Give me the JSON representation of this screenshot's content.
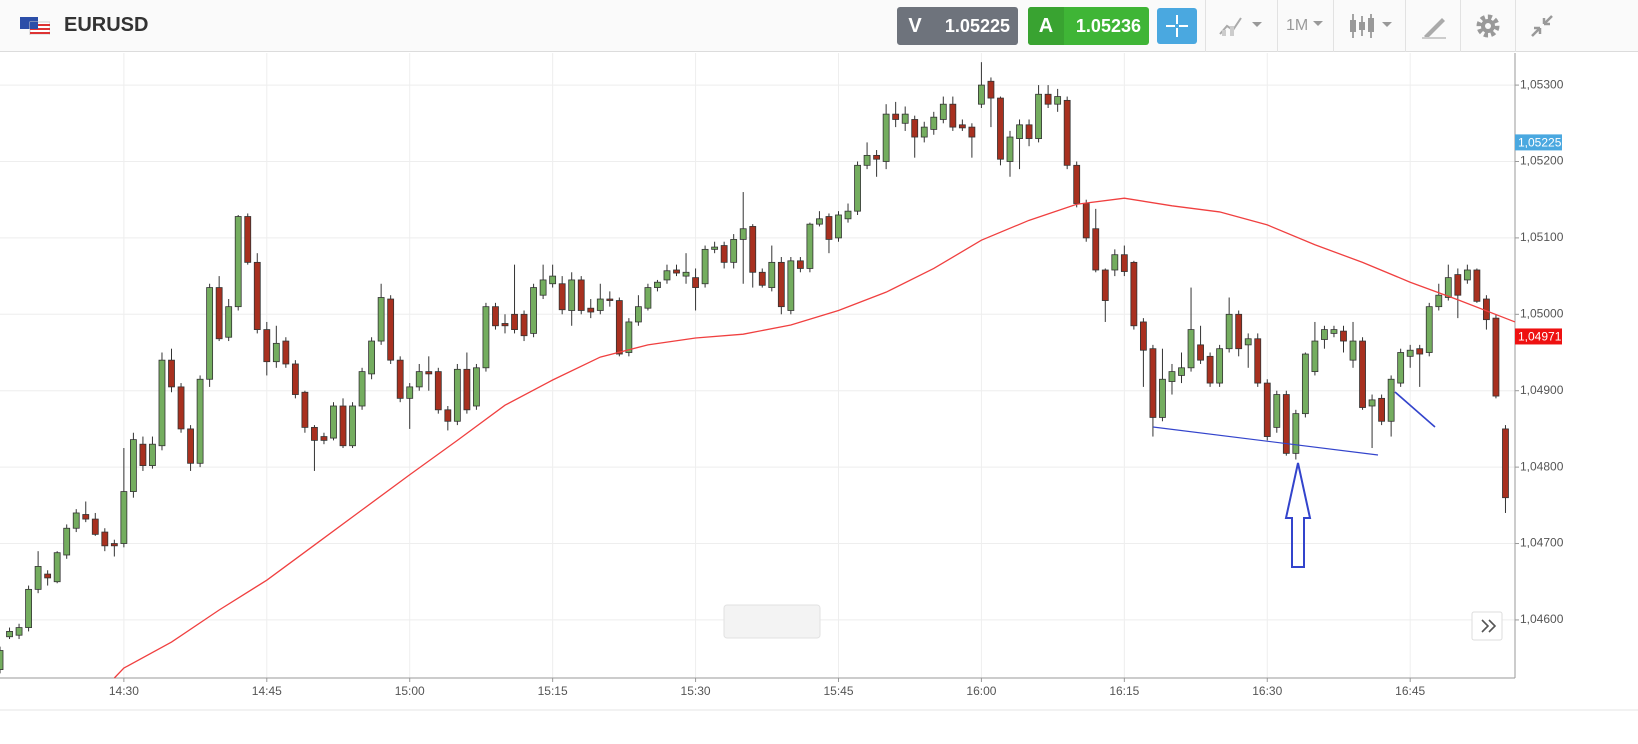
{
  "toolbar": {
    "symbol": "EURUSD",
    "sell": {
      "label": "V",
      "price": 1.05225
    },
    "buy": {
      "label": "A",
      "price": 1.05236
    },
    "timeframe": "1M"
  },
  "chart_data": {
    "type": "candlestick",
    "x": [
      "14:17",
      "14:18",
      "14:19",
      "14:20",
      "14:21",
      "14:22",
      "14:23",
      "14:24",
      "14:25",
      "14:26",
      "14:27",
      "14:28",
      "14:29",
      "14:30",
      "14:31",
      "14:32",
      "14:33",
      "14:34",
      "14:35",
      "14:36",
      "14:37",
      "14:38",
      "14:39",
      "14:40",
      "14:41",
      "14:42",
      "14:43",
      "14:44",
      "14:45",
      "14:46",
      "14:47",
      "14:48",
      "14:49",
      "14:50",
      "14:51",
      "14:52",
      "14:53",
      "14:54",
      "14:55",
      "14:56",
      "14:57",
      "14:58",
      "14:59",
      "15:00",
      "15:01",
      "15:02",
      "15:03",
      "15:04",
      "15:05",
      "15:06",
      "15:07",
      "15:08",
      "15:09",
      "15:10",
      "15:11",
      "15:12",
      "15:13",
      "15:14",
      "15:15",
      "15:16",
      "15:17",
      "15:18",
      "15:19",
      "15:20",
      "15:21",
      "15:22",
      "15:23",
      "15:24",
      "15:25",
      "15:26",
      "15:27",
      "15:28",
      "15:29",
      "15:30",
      "15:31",
      "15:32",
      "15:33",
      "15:34",
      "15:35",
      "15:36",
      "15:37",
      "15:38",
      "15:39",
      "15:40",
      "15:41",
      "15:42",
      "15:43",
      "15:44",
      "15:45",
      "15:46",
      "15:47",
      "15:48",
      "15:49",
      "15:50",
      "15:51",
      "15:52",
      "15:53",
      "15:54",
      "15:55",
      "15:56",
      "15:57",
      "15:58",
      "15:59",
      "16:00",
      "16:01",
      "16:02",
      "16:03",
      "16:04",
      "16:05",
      "16:06",
      "16:07",
      "16:08",
      "16:09",
      "16:10",
      "16:11",
      "16:12",
      "16:13",
      "16:14",
      "16:15",
      "16:16",
      "16:17",
      "16:18",
      "16:19",
      "16:20",
      "16:21",
      "16:22",
      "16:23",
      "16:24",
      "16:25",
      "16:26",
      "16:27",
      "16:28",
      "16:29",
      "16:30",
      "16:31",
      "16:32",
      "16:33",
      "16:34",
      "16:35",
      "16:36",
      "16:37",
      "16:38",
      "16:39",
      "16:40",
      "16:41",
      "16:42",
      "16:43",
      "16:44",
      "16:45",
      "16:46",
      "16:47",
      "16:48",
      "16:49",
      "16:50",
      "16:51",
      "16:52",
      "16:53",
      "16:54",
      "16:55"
    ],
    "open": [
      1.04535,
      1.04578,
      1.0458,
      1.0459,
      1.0464,
      1.0466,
      1.0465,
      1.04685,
      1.0472,
      1.04738,
      1.04732,
      1.04715,
      1.047,
      1.047,
      1.04768,
      1.0483,
      1.04802,
      1.04828,
      1.0494,
      1.04905,
      1.0485,
      1.04805,
      1.04915,
      1.05035,
      1.0497,
      1.0501,
      1.05128,
      1.05068,
      1.0498,
      1.04938,
      1.04965,
      1.04935,
      1.04898,
      1.04852,
      1.0484,
      1.04838,
      1.0488,
      1.04828,
      1.0488,
      1.04922,
      1.04965,
      1.0502,
      1.0494,
      1.0489,
      1.04905,
      1.04925,
      1.04925,
      1.04875,
      1.0486,
      1.04928,
      1.0488,
      1.0493,
      1.0501,
      1.04988,
      1.05,
      1.05,
      1.04975,
      1.05025,
      1.0504,
      1.0504,
      1.05005,
      1.05045,
      1.05008,
      1.05005,
      1.0502,
      1.05018,
      1.0495,
      1.0499,
      1.05008,
      1.05035,
      1.05045,
      1.05058,
      1.0505,
      1.05048,
      1.0504,
      1.05085,
      1.0509,
      1.05068,
      1.05098,
      1.05115,
      1.05055,
      1.05035,
      1.05068,
      1.05005,
      1.0507,
      1.0506,
      1.05118,
      1.05128,
      1.051,
      1.05125,
      1.05135,
      1.05195,
      1.05208,
      1.052,
      1.05262,
      1.0525,
      1.05255,
      1.05232,
      1.05242,
      1.05255,
      1.05275,
      1.05248,
      1.05245,
      1.05275,
      1.05305,
      1.05283,
      1.052,
      1.0523,
      1.05248,
      1.0523,
      1.05288,
      1.05275,
      1.0528,
      1.05195,
      1.05145,
      1.05112,
      1.05058,
      1.05058,
      1.05078,
      1.05068,
      1.0499,
      1.04955,
      1.04865,
      1.04912,
      1.0492,
      1.0493,
      1.0496,
      1.04945,
      1.0491,
      1.04955,
      1.05,
      1.0496,
      1.04968,
      1.0491,
      1.04852,
      1.04895,
      1.04818,
      1.0487,
      1.04925,
      1.04967,
      1.04975,
      1.04978,
      1.0494,
      1.04965,
      1.0488,
      1.0489,
      1.0486,
      1.0491,
      1.04945,
      1.04955,
      1.0495,
      1.0501,
      1.05022,
      1.05052,
      1.05045,
      1.05058,
      1.0502,
      1.04995,
      1.0485
    ],
    "high": [
      1.04565,
      1.0459,
      1.04595,
      1.04645,
      1.0469,
      1.04665,
      1.0469,
      1.04725,
      1.04745,
      1.04755,
      1.0474,
      1.0472,
      1.04705,
      1.04825,
      1.04845,
      1.0484,
      1.0484,
      1.0495,
      1.04955,
      1.0491,
      1.04855,
      1.0492,
      1.0504,
      1.0505,
      1.0502,
      1.0513,
      1.05132,
      1.0508,
      1.0499,
      1.04985,
      1.0497,
      1.0494,
      1.049,
      1.04855,
      1.04845,
      1.04885,
      1.0489,
      1.04885,
      1.0493,
      1.0497,
      1.0504,
      1.05025,
      1.04945,
      1.0491,
      1.04935,
      1.04945,
      1.0493,
      1.0488,
      1.04935,
      1.0495,
      1.04935,
      1.05015,
      1.05015,
      1.05,
      1.05065,
      1.05005,
      1.0504,
      1.05065,
      1.05065,
      1.0505,
      1.05055,
      1.0505,
      1.0502,
      1.0504,
      1.0503,
      1.05022,
      1.04995,
      1.05025,
      1.0504,
      1.05045,
      1.05065,
      1.05065,
      1.0508,
      1.0506,
      1.0509,
      1.05095,
      1.05095,
      1.05105,
      1.0516,
      1.05118,
      1.0506,
      1.0509,
      1.05075,
      1.05075,
      1.05075,
      1.0512,
      1.05135,
      1.05132,
      1.05135,
      1.05145,
      1.052,
      1.05225,
      1.05215,
      1.05275,
      1.05278,
      1.05272,
      1.0526,
      1.05252,
      1.05265,
      1.05285,
      1.05285,
      1.05255,
      1.0525,
      1.0533,
      1.0531,
      1.05285,
      1.0524,
      1.05255,
      1.05255,
      1.053,
      1.053,
      1.05295,
      1.05285,
      1.052,
      1.0515,
      1.05138,
      1.0506,
      1.05085,
      1.0509,
      1.0507,
      1.04995,
      1.0496,
      1.04955,
      1.04935,
      1.0495,
      1.05035,
      1.04985,
      1.0495,
      1.0496,
      1.05022,
      1.05005,
      1.04975,
      1.04975,
      1.04915,
      1.049,
      1.049,
      1.04875,
      1.0495,
      1.0499,
      1.04985,
      1.04985,
      1.04985,
      1.0499,
      1.0497,
      1.04895,
      1.04895,
      1.0492,
      1.04955,
      1.0496,
      1.0496,
      1.05015,
      1.0504,
      1.05065,
      1.0506,
      1.05065,
      1.0506,
      1.05025,
      1.05,
      1.04855
    ],
    "low": [
      1.0453,
      1.04575,
      1.04575,
      1.04585,
      1.04635,
      1.04645,
      1.04648,
      1.0468,
      1.04715,
      1.04728,
      1.0471,
      1.0469,
      1.04683,
      1.04695,
      1.0476,
      1.04795,
      1.04798,
      1.04822,
      1.04898,
      1.04845,
      1.04795,
      1.048,
      1.04905,
      1.04965,
      1.04965,
      1.05005,
      1.05065,
      1.04975,
      1.0492,
      1.0493,
      1.0493,
      1.0489,
      1.04845,
      1.04795,
      1.0483,
      1.04835,
      1.04825,
      1.04825,
      1.04875,
      1.04915,
      1.0496,
      1.04935,
      1.04885,
      1.0485,
      1.049,
      1.049,
      1.0487,
      1.04848,
      1.04855,
      1.0487,
      1.04875,
      1.04925,
      1.0498,
      1.04975,
      1.04975,
      1.04965,
      1.0497,
      1.0502,
      1.05035,
      1.05,
      1.04985,
      1.05,
      1.04995,
      1.05,
      1.0501,
      1.04945,
      1.04945,
      1.04985,
      1.05005,
      1.0503,
      1.0504,
      1.0505,
      1.0504,
      1.05005,
      1.05035,
      1.0508,
      1.0506,
      1.0506,
      1.0504,
      1.05035,
      1.05035,
      1.0503,
      1.05,
      1.05,
      1.05055,
      1.05055,
      1.05115,
      1.0508,
      1.05095,
      1.0512,
      1.0513,
      1.0519,
      1.0518,
      1.0519,
      1.05245,
      1.0524,
      1.05205,
      1.05225,
      1.05235,
      1.0525,
      1.0524,
      1.0524,
      1.05205,
      1.0527,
      1.05245,
      1.05195,
      1.0518,
      1.0519,
      1.0522,
      1.05225,
      1.0527,
      1.05265,
      1.0519,
      1.0514,
      1.05095,
      1.05055,
      1.0499,
      1.0505,
      1.0505,
      1.0498,
      1.04905,
      1.0484,
      1.0486,
      1.04895,
      1.0491,
      1.04925,
      1.04935,
      1.04905,
      1.04905,
      1.0495,
      1.04945,
      1.0493,
      1.04905,
      1.04835,
      1.04845,
      1.04815,
      1.0481,
      1.04865,
      1.0492,
      1.04955,
      1.0497,
      1.0495,
      1.0493,
      1.04875,
      1.04825,
      1.04855,
      1.0484,
      1.04905,
      1.0493,
      1.04905,
      1.04945,
      1.05005,
      1.05018,
      1.04995,
      1.0504,
      1.05015,
      1.0498,
      1.0489,
      1.0474
    ],
    "close": [
      1.0456,
      1.04585,
      1.0459,
      1.0464,
      1.0467,
      1.04655,
      1.04688,
      1.0472,
      1.0474,
      1.04732,
      1.04712,
      1.04697,
      1.04697,
      1.04768,
      1.04836,
      1.04802,
      1.0483,
      1.0494,
      1.04905,
      1.0485,
      1.04805,
      1.04915,
      1.05035,
      1.04968,
      1.0501,
      1.05128,
      1.05068,
      1.0498,
      1.04938,
      1.04962,
      1.04935,
      1.04895,
      1.04852,
      1.04835,
      1.04835,
      1.0488,
      1.04828,
      1.0488,
      1.04925,
      1.04965,
      1.05022,
      1.0494,
      1.0489,
      1.04905,
      1.04925,
      1.04922,
      1.04875,
      1.0486,
      1.04928,
      1.04875,
      1.0493,
      1.0501,
      1.04985,
      1.04985,
      1.0498,
      1.04972,
      1.05035,
      1.05045,
      1.0505,
      1.05006,
      1.05045,
      1.05005,
      1.05003,
      1.0502,
      1.05018,
      1.04948,
      1.0499,
      1.0501,
      1.05035,
      1.05042,
      1.05057,
      1.05054,
      1.05055,
      1.05035,
      1.05085,
      1.05088,
      1.05068,
      1.05098,
      1.05112,
      1.05055,
      1.05038,
      1.05068,
      1.0501,
      1.0507,
      1.0506,
      1.05118,
      1.05125,
      1.05098,
      1.0513,
      1.05135,
      1.05195,
      1.05208,
      1.05203,
      1.05262,
      1.05255,
      1.05262,
      1.05232,
      1.05245,
      1.05258,
      1.05275,
      1.05245,
      1.05244,
      1.05232,
      1.053,
      1.05283,
      1.05203,
      1.05232,
      1.05248,
      1.0523,
      1.05288,
      1.05275,
      1.05285,
      1.05195,
      1.05145,
      1.051,
      1.05058,
      1.05018,
      1.05078,
      1.05056,
      1.04985,
      1.04953,
      1.04865,
      1.04915,
      1.04925,
      1.0493,
      1.0498,
      1.0494,
      1.0491,
      1.04955,
      1.05,
      1.04955,
      1.04968,
      1.0491,
      1.0484,
      1.04895,
      1.04818,
      1.0487,
      1.04948,
      1.04965,
      1.0498,
      1.0498,
      1.04965,
      1.04965,
      1.04878,
      1.04888,
      1.0486,
      1.04915,
      1.0495,
      1.04953,
      1.04948,
      1.0501,
      1.05025,
      1.05048,
      1.05025,
      1.05058,
      1.05017,
      1.04993,
      1.04893,
      1.0476
    ],
    "up_color": "#74ad5f",
    "down_color": "#a8301f",
    "xlim": [
      "14:17",
      "16:56"
    ],
    "xticks": [
      "14:30",
      "14:45",
      "15:00",
      "15:15",
      "15:30",
      "15:45",
      "16:00",
      "16:15",
      "16:30",
      "16:45"
    ],
    "ylim": [
      1.04524,
      1.05342
    ],
    "yticks": [
      {
        "value": 1.046,
        "label": "1,04600"
      },
      {
        "value": 1.047,
        "label": "1,04700"
      },
      {
        "value": 1.048,
        "label": "1,04800"
      },
      {
        "value": 1.049,
        "label": "1,04900"
      },
      {
        "value": 1.05,
        "label": "1,05000"
      },
      {
        "value": 1.051,
        "label": "1,05100"
      },
      {
        "value": 1.052,
        "label": "1,05200"
      },
      {
        "value": 1.053,
        "label": "1,05300"
      }
    ],
    "grid": true,
    "moving_average": {
      "color": "#f04040",
      "x": [
        "14:29",
        "14:30",
        "14:35",
        "14:40",
        "14:45",
        "14:50",
        "14:55",
        "15:00",
        "15:05",
        "15:10",
        "15:15",
        "15:20",
        "15:25",
        "15:30",
        "15:35",
        "15:40",
        "15:45",
        "15:50",
        "15:55",
        "16:00",
        "16:05",
        "16:10",
        "16:15",
        "16:20",
        "16:25",
        "16:30",
        "16:35",
        "16:40",
        "16:45",
        "16:50",
        "16:56"
      ],
      "values": [
        1.04524,
        1.04537,
        1.04571,
        1.04613,
        1.04652,
        1.04698,
        1.04744,
        1.0479,
        1.04835,
        1.04881,
        1.04914,
        1.04944,
        1.0496,
        1.04969,
        1.04974,
        1.04986,
        1.05005,
        1.05029,
        1.0506,
        1.05097,
        1.05123,
        1.05144,
        1.05152,
        1.05142,
        1.05134,
        1.05117,
        1.05091,
        1.05068,
        1.05042,
        1.05019,
        1.0499
      ]
    },
    "price_markers": [
      {
        "value": 1.05225,
        "label": "1,05225",
        "color": "#4aa8e0"
      },
      {
        "value": 1.04971,
        "label": "1,04971",
        "color": "#ee1111"
      }
    ]
  }
}
